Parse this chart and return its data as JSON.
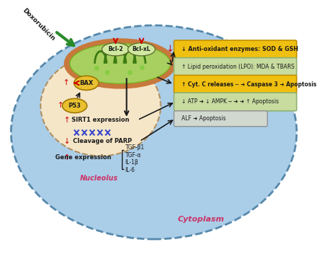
{
  "bg_color": "#aacde8",
  "cytoplasm_color": "#aacde8",
  "nucleolus_color": "#f5e6c8",
  "nucleolus_border": "#c8a878",
  "mito_outer": "#c8783c",
  "mito_inner": "#78b43c",
  "mito_bg": "#d4e8a0",
  "box_yellow": "#f0c010",
  "box_green_light": "#c8dca0",
  "box_grey": "#d0d8d0",
  "arrow_color": "#1a1a1a",
  "red_arrow": "#cc0000",
  "title_color": "#cc3366",
  "dox_arrow_color": "#2a8a2a",
  "bax_color": "#e8c030",
  "p53_color": "#e8c030",
  "text_color": "#1a1a1a",
  "label_nucleolus": "Nucleolus",
  "label_cytoplasm": "Cytoplasm",
  "label_dox": "Doxorubicin"
}
